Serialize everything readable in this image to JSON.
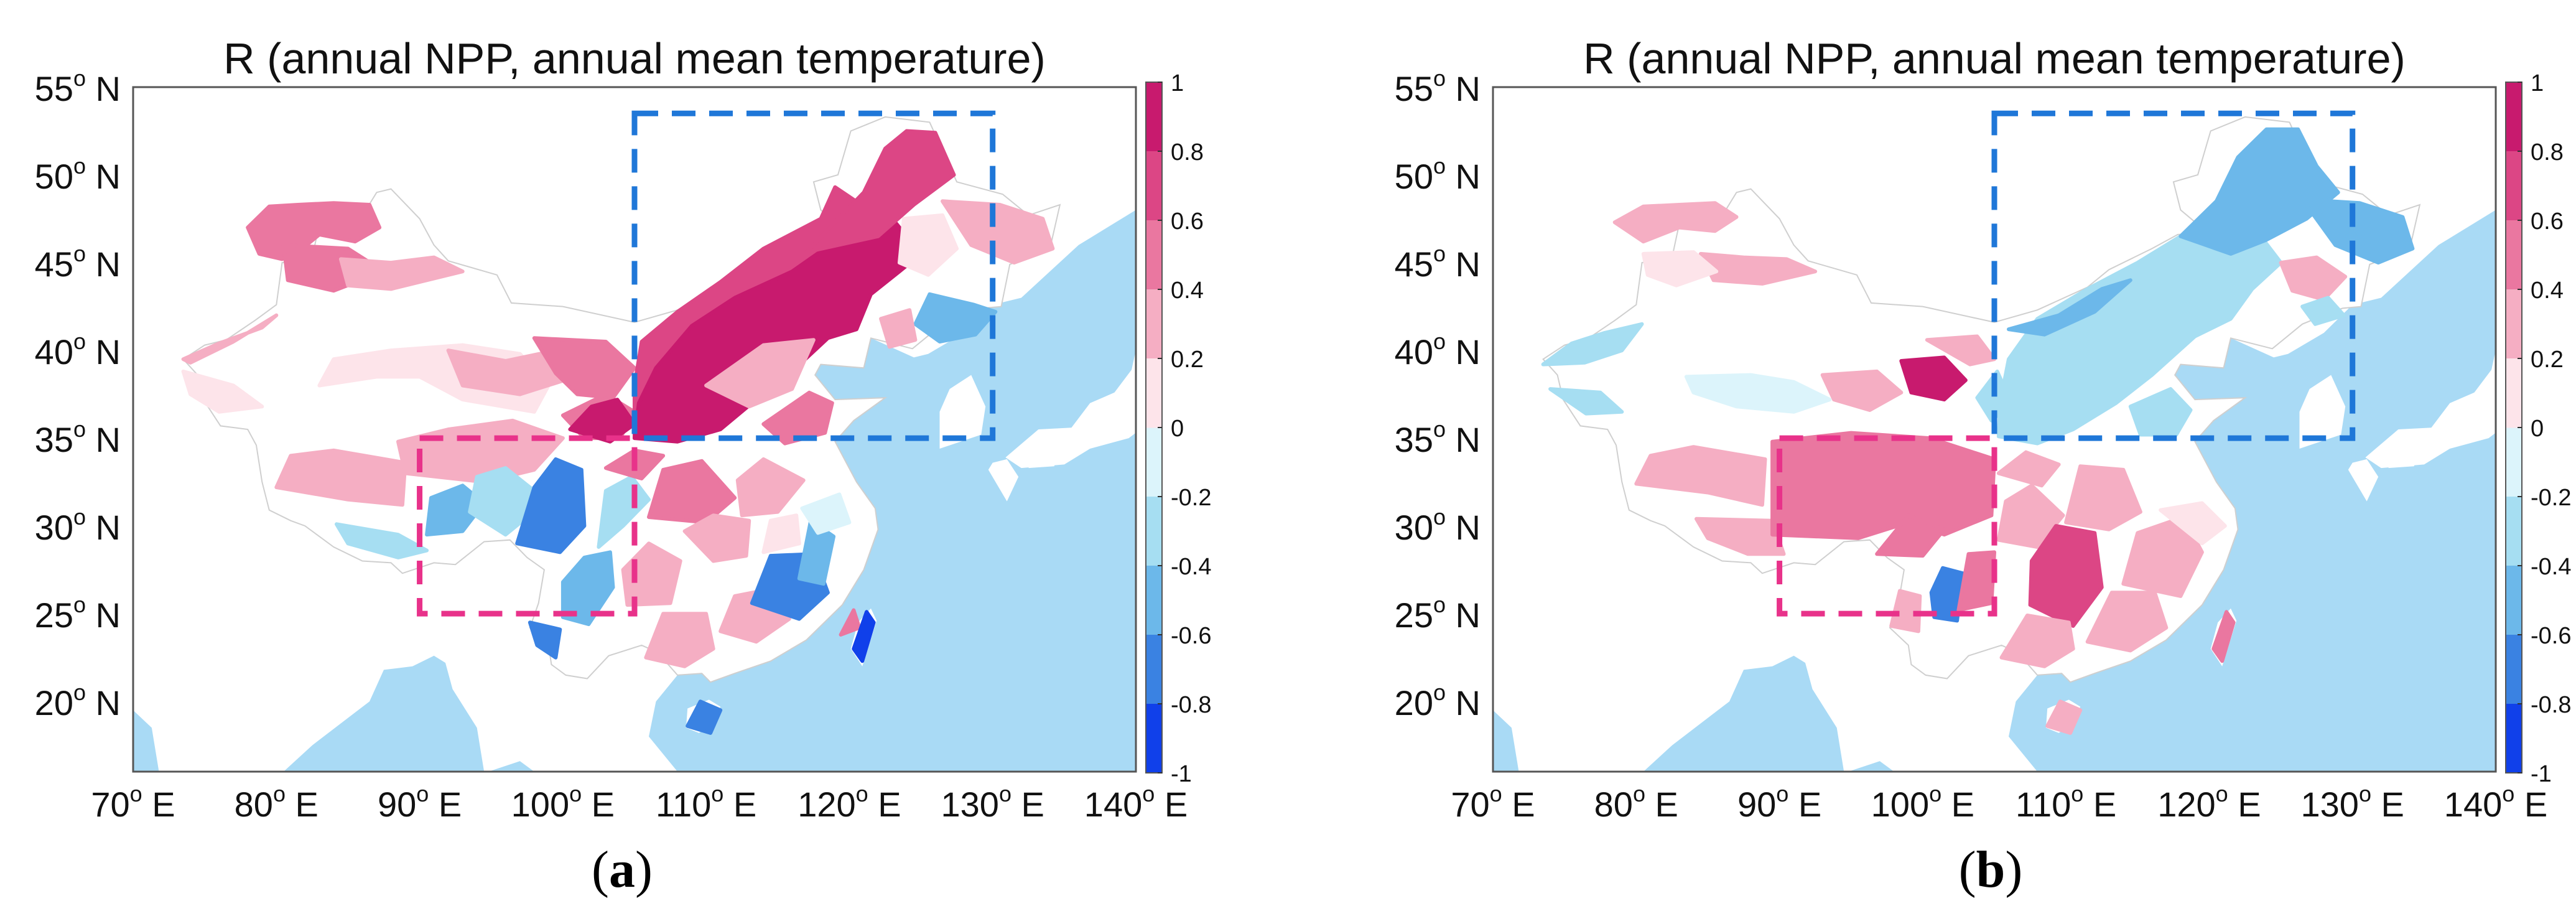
{
  "panels": [
    {
      "id": "a",
      "title": "R (annual NPP, annual mean temperature)",
      "label_open": "(",
      "label_letter": "a",
      "label_close": ")",
      "pattern": "a"
    },
    {
      "id": "b",
      "title": "R (annual NPP, annual mean temperature)",
      "label_open": "(",
      "label_letter": "b",
      "label_close": ")",
      "pattern": "b"
    }
  ],
  "axes": {
    "lon_range": [
      70,
      140
    ],
    "lat_range": [
      16,
      55
    ],
    "x_ticks": [
      {
        "value": 70,
        "deg": "70",
        "hemi": "E"
      },
      {
        "value": 80,
        "deg": "80",
        "hemi": "E"
      },
      {
        "value": 90,
        "deg": "90",
        "hemi": "E"
      },
      {
        "value": 100,
        "deg": "100",
        "hemi": "E"
      },
      {
        "value": 110,
        "deg": "110",
        "hemi": "E"
      },
      {
        "value": 120,
        "deg": "120",
        "hemi": "E"
      },
      {
        "value": 130,
        "deg": "130",
        "hemi": "E"
      },
      {
        "value": 140,
        "deg": "140",
        "hemi": "E"
      }
    ],
    "y_ticks": [
      {
        "value": 55,
        "deg": "55",
        "hemi": "N"
      },
      {
        "value": 50,
        "deg": "50",
        "hemi": "N"
      },
      {
        "value": 45,
        "deg": "45",
        "hemi": "N"
      },
      {
        "value": 40,
        "deg": "40",
        "hemi": "N"
      },
      {
        "value": 35,
        "deg": "35",
        "hemi": "N"
      },
      {
        "value": 30,
        "deg": "30",
        "hemi": "N"
      },
      {
        "value": 25,
        "deg": "25",
        "hemi": "N"
      },
      {
        "value": 20,
        "deg": "20",
        "hemi": "N"
      }
    ],
    "degree_symbol": "o"
  },
  "colorbar": {
    "range": [
      -1,
      1
    ],
    "ticks": [
      {
        "value": 1,
        "label": "1"
      },
      {
        "value": 0.8,
        "label": "0.8"
      },
      {
        "value": 0.6,
        "label": "0.6"
      },
      {
        "value": 0.4,
        "label": "0.4"
      },
      {
        "value": 0.2,
        "label": "0.2"
      },
      {
        "value": 0,
        "label": "0"
      },
      {
        "value": -0.2,
        "label": "-0.2"
      },
      {
        "value": -0.4,
        "label": "-0.4"
      },
      {
        "value": -0.6,
        "label": "-0.6"
      },
      {
        "value": -0.8,
        "label": "-0.8"
      },
      {
        "value": -1,
        "label": "-1"
      }
    ],
    "positive_colors": [
      "#fde4ea",
      "#f5aec3",
      "#ea77a0",
      "#dc4685",
      "#c81a6e"
    ],
    "negative_colors": [
      "#dcf4fb",
      "#a6def2",
      "#6cb8ea",
      "#3a82e2",
      "#1040ea"
    ]
  },
  "regions": [
    {
      "name": "northern region",
      "lon": [
        105,
        130
      ],
      "lat": [
        35,
        53.5
      ],
      "color": "#1f77d8"
    },
    {
      "name": "southwestern region",
      "lon": [
        90,
        105
      ],
      "lat": [
        25,
        35
      ],
      "color": "#e8328a"
    }
  ],
  "colors": {
    "ocean": "#a9daf5",
    "land": "#ffffff",
    "border": "#cfcfcf"
  }
}
